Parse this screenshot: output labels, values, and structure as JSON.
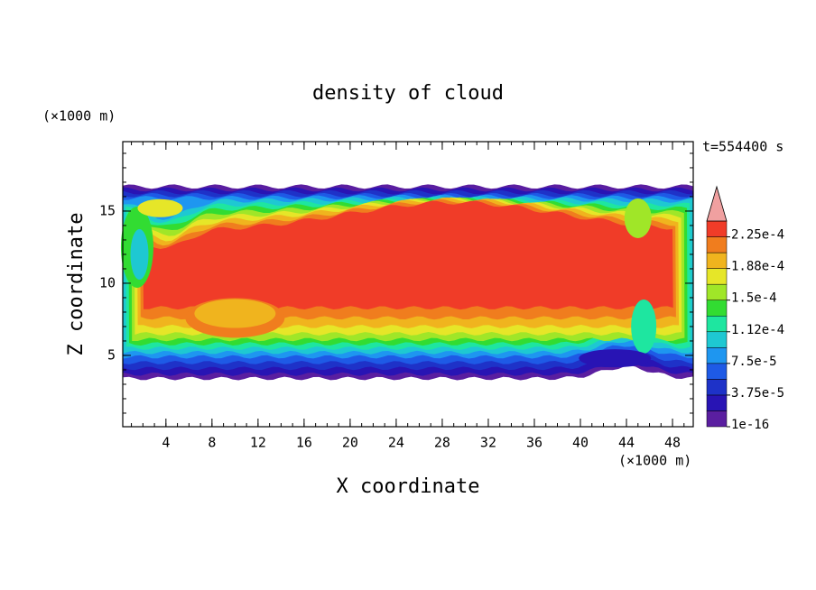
{
  "chart_data": {
    "type": "contour",
    "title": "density of cloud",
    "x_label": "X coordinate",
    "y_label": "Z coordinate",
    "x_unit": "(×1000 m)",
    "y_unit": "(×1000 m)",
    "time_label": "t=554400 s",
    "xlim": [
      0.25,
      49.8
    ],
    "ylim": [
      0.06,
      19.81
    ],
    "xticks": [
      4,
      8,
      12,
      16,
      20,
      24,
      28,
      32,
      36,
      40,
      44,
      48
    ],
    "yticks": [
      5,
      10,
      15
    ],
    "colorbar": {
      "colors": [
        "#5a1ea0",
        "#2814b4",
        "#1e32c8",
        "#1e5ae6",
        "#1e96f0",
        "#1ec8d2",
        "#1ee6a0",
        "#32dc32",
        "#a0e628",
        "#e6e628",
        "#f0b41e",
        "#f07d1e",
        "#f03c28"
      ],
      "extend_color": "#f0a0a0",
      "ticks": [
        {
          "value": 1e-16,
          "label": "1e-16"
        },
        {
          "value": 3.75e-05,
          "label": "3.75e-5"
        },
        {
          "value": 7.5e-05,
          "label": "7.5e-5"
        },
        {
          "value": 0.000112,
          "label": "1.12e-4"
        },
        {
          "value": 0.00015,
          "label": "1.5e-4"
        },
        {
          "value": 0.000188,
          "label": "1.88e-4"
        },
        {
          "value": 0.000225,
          "label": "2.25e-4"
        }
      ]
    }
  }
}
